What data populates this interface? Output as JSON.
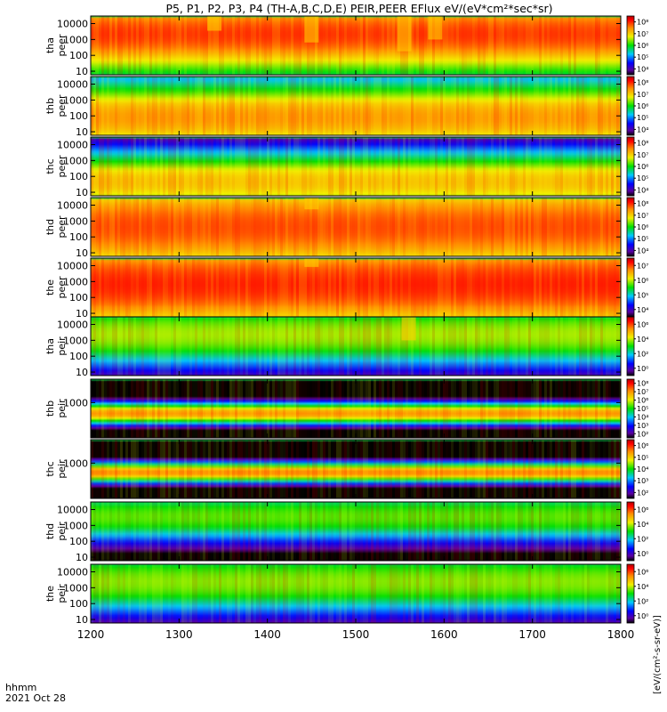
{
  "title": "P5, P1, P2, P3, P4 (TH-A,B,C,D,E) PEIR,PEER EFlux eV/(eV*cm²*sec*sr)",
  "footer": {
    "time_label": "hhmm",
    "date_label": "2021 Oct 28"
  },
  "colorbar_unit": "[eV/(cm²-s-sr-eV)]",
  "chart_data": {
    "type": "heatmap",
    "x_axis": {
      "range": [
        1200,
        1800
      ],
      "ticks": [
        "1200",
        "1300",
        "1400",
        "1500",
        "1600",
        "1700",
        "1800"
      ]
    },
    "panels": [
      {
        "id": "tha-peer",
        "probe": "tha",
        "species": "peer",
        "label": [
          "tha",
          "peer"
        ],
        "y_ticks": [
          "10",
          "100",
          "1000",
          "10000"
        ],
        "y_log": true,
        "ylim": [
          6,
          30000
        ],
        "cbar_ticks": [
          "10⁴",
          "10⁵",
          "10⁶",
          "10⁷",
          "10⁸"
        ],
        "cbar_range": [
          4,
          8
        ],
        "core_level": 0.88,
        "band_low": 0.42,
        "band_high": 0.96,
        "dips": [
          [
            1340,
            0.25
          ],
          [
            1450,
            0.45
          ],
          [
            1555,
            0.6
          ],
          [
            1590,
            0.4
          ]
        ]
      },
      {
        "id": "thb-peer",
        "probe": "thb",
        "species": "peer",
        "label": [
          "thb",
          "peer"
        ],
        "y_ticks": [
          "10",
          "100",
          "1000",
          "10000"
        ],
        "y_log": true,
        "ylim": [
          6,
          30000
        ],
        "cbar_ticks": [
          "10⁴",
          "10⁵",
          "10⁶",
          "10⁷",
          "10⁸"
        ],
        "cbar_range": [
          4,
          8
        ],
        "core_level": 0.78,
        "band_low": 0.05,
        "band_high": 0.55,
        "dips": []
      },
      {
        "id": "thc-peer",
        "probe": "thc",
        "species": "peer",
        "label": [
          "thc",
          "peer"
        ],
        "y_ticks": [
          "10",
          "100",
          "1000",
          "10000"
        ],
        "y_log": true,
        "ylim": [
          6,
          30000
        ],
        "cbar_ticks": [
          "10⁴",
          "10⁵",
          "10⁶",
          "10⁷",
          "10⁸"
        ],
        "cbar_range": [
          4,
          8
        ],
        "core_level": 0.72,
        "band_low": 0.02,
        "band_high": 0.45,
        "dips": []
      },
      {
        "id": "thd-peer",
        "probe": "thd",
        "species": "peer",
        "label": [
          "thd",
          "peer"
        ],
        "y_ticks": [
          "10",
          "100",
          "1000",
          "10000"
        ],
        "y_log": true,
        "ylim": [
          6,
          30000
        ],
        "cbar_ticks": [
          "10⁴",
          "10⁵",
          "10⁶",
          "10⁷",
          "10⁸"
        ],
        "cbar_range": [
          4,
          8
        ],
        "core_level": 0.86,
        "band_low": 0.15,
        "band_high": 0.85,
        "dips": [
          [
            1450,
            0.2
          ]
        ]
      },
      {
        "id": "the-peer",
        "probe": "the",
        "species": "peer",
        "label": [
          "the",
          "peer"
        ],
        "y_ticks": [
          "10",
          "100",
          "1000",
          "10000"
        ],
        "y_log": true,
        "ylim": [
          6,
          30000
        ],
        "cbar_ticks": [
          "10⁴",
          "10⁵",
          "10⁶",
          "10⁷"
        ],
        "cbar_range": [
          4,
          7
        ],
        "core_level": 0.9,
        "band_low": 0.2,
        "band_high": 0.9,
        "dips": [
          [
            1450,
            0.15
          ]
        ]
      },
      {
        "id": "tha-peir",
        "probe": "tha",
        "species": "peir",
        "label": [
          "tha",
          "peir"
        ],
        "y_ticks": [
          "10",
          "100",
          "1000",
          "10000"
        ],
        "y_log": true,
        "ylim": [
          6,
          30000
        ],
        "cbar_ticks": [
          "10⁰",
          "10²",
          "10⁴",
          "10⁶"
        ],
        "cbar_range": [
          0,
          7
        ],
        "core_level": 0.6,
        "band_low": 0.45,
        "band_high": 0.95,
        "dips": [
          [
            1560,
            0.4
          ]
        ]
      },
      {
        "id": "thb-peir",
        "probe": "thb",
        "species": "peir",
        "label": [
          "thb",
          "peir"
        ],
        "y_ticks": [
          "1000"
        ],
        "y_log": true,
        "ylim": [
          6,
          30000
        ],
        "cbar_ticks": [
          "10²",
          "10³",
          "10⁴",
          "10⁵",
          "10⁶",
          "10⁷",
          "10⁸"
        ],
        "cbar_range": [
          2,
          8
        ],
        "core_level": 0.78,
        "band_low": 0.35,
        "band_high": 0.48,
        "dips": []
      },
      {
        "id": "thc-peir",
        "probe": "thc",
        "species": "peir",
        "label": [
          "thc",
          "peir"
        ],
        "y_ticks": [
          "1000"
        ],
        "y_log": true,
        "ylim": [
          6,
          30000
        ],
        "cbar_ticks": [
          "10²",
          "10³",
          "10⁴",
          "10⁵",
          "10⁶"
        ],
        "cbar_range": [
          2,
          6
        ],
        "core_level": 0.8,
        "band_low": 0.38,
        "band_high": 0.5,
        "dips": []
      },
      {
        "id": "thd-peir",
        "probe": "thd",
        "species": "peir",
        "label": [
          "thd",
          "peir"
        ],
        "y_ticks": [
          "10",
          "100",
          "1000",
          "10000"
        ],
        "y_log": true,
        "ylim": [
          6,
          30000
        ],
        "cbar_ticks": [
          "10⁰",
          "10²",
          "10⁴",
          "10⁶"
        ],
        "cbar_range": [
          0,
          7
        ],
        "core_level": 0.55,
        "band_low": 0.55,
        "band_high": 0.95,
        "dips": []
      },
      {
        "id": "the-peir",
        "probe": "the",
        "species": "peir",
        "label": [
          "the",
          "peir"
        ],
        "y_ticks": [
          "10",
          "100",
          "1000",
          "10000"
        ],
        "y_log": true,
        "ylim": [
          6,
          30000
        ],
        "cbar_ticks": [
          "10⁰",
          "10²",
          "10⁴",
          "10⁶"
        ],
        "cbar_range": [
          0,
          7
        ],
        "core_level": 0.58,
        "band_low": 0.45,
        "band_high": 0.95,
        "dips": []
      }
    ]
  }
}
